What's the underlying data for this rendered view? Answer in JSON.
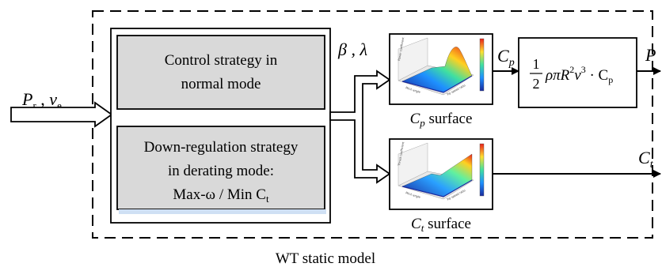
{
  "diagram": {
    "model_label": "WT static model",
    "inputs": {
      "p_sym": "P",
      "p_sub": "r",
      "sep": " ,  ",
      "v_sym": "v",
      "v_sub": "e"
    },
    "beta_lambda": "β ,  λ",
    "strategy_normal": [
      "Control strategy in",
      "normal mode"
    ],
    "strategy_derating": [
      "Down-regulation strategy",
      "in derating mode:",
      "Max-ω / Min C"
    ],
    "strategy_derating_sub": "t",
    "cp_surface": {
      "sym": "C",
      "sub": "p",
      "rest": " surface"
    },
    "ct_surface": {
      "sym": "C",
      "sub": "t",
      "rest": " surface"
    },
    "cp_out": {
      "sym": "C",
      "sub": "p"
    },
    "ct_out": {
      "sym": "C",
      "sub": "t"
    },
    "p_out": "P",
    "formula": {
      "num": "1",
      "den": "2",
      "body": "ρπR",
      "exp1": "2",
      "v": "v",
      "exp2": "3",
      "dot": " · C",
      "sub": "p"
    },
    "plot_labels": {
      "z_axis": "Power coefficient",
      "z_axis_t": "Thrust coefficient",
      "x_axis": "Tip speed ratio",
      "y_axis": "Pitch angle"
    },
    "colors": {
      "block_fill": "#d9d9d9",
      "arrow": "#000000",
      "surface_hi": "#ff3b1f",
      "surface_lo": "#2233cc"
    }
  }
}
